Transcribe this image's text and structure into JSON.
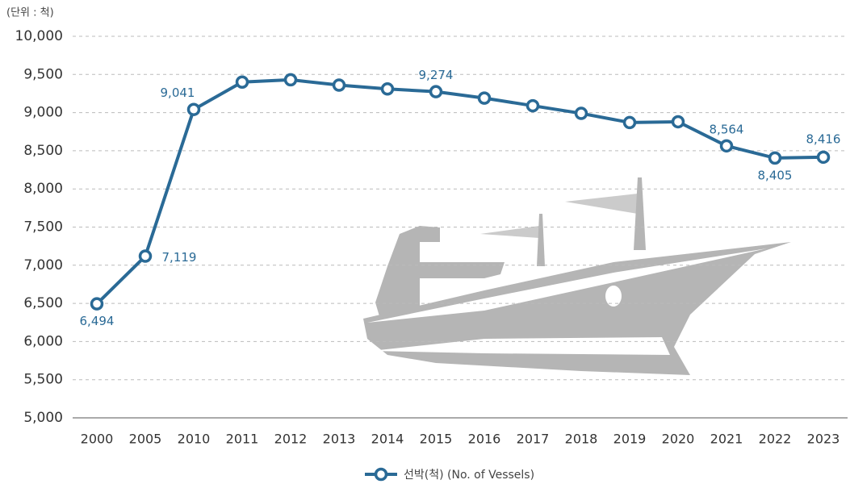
{
  "chart_data": {
    "type": "line",
    "unit_note": "(단위 : 척)",
    "categories": [
      "2000",
      "2005",
      "2010",
      "2011",
      "2012",
      "2013",
      "2014",
      "2015",
      "2016",
      "2017",
      "2018",
      "2019",
      "2020",
      "2021",
      "2022",
      "2023"
    ],
    "series": [
      {
        "name": "선박(척) (No. of Vessels)",
        "color": "#2a6a96",
        "values": [
          6494,
          7119,
          9041,
          9400,
          9430,
          9360,
          9310,
          9274,
          9190,
          9090,
          8990,
          8870,
          8880,
          8564,
          8405,
          8416
        ],
        "value_labels": [
          "6,494",
          "7,119",
          "9,041",
          null,
          null,
          null,
          null,
          "9,274",
          null,
          null,
          null,
          null,
          null,
          "8,564",
          "8,405",
          "8,416"
        ]
      }
    ],
    "ylim": [
      5000,
      10000
    ],
    "yticks": [
      {
        "value": 5000,
        "label": "5,000"
      },
      {
        "value": 5500,
        "label": "5,500"
      },
      {
        "value": 6000,
        "label": "6,000"
      },
      {
        "value": 6500,
        "label": "6,500"
      },
      {
        "value": 7000,
        "label": "7,000"
      },
      {
        "value": 7500,
        "label": "7,500"
      },
      {
        "value": 8000,
        "label": "8,000"
      },
      {
        "value": 8500,
        "label": "8,500"
      },
      {
        "value": 9000,
        "label": "9,000"
      },
      {
        "value": 9500,
        "label": "9,500"
      },
      {
        "value": 10000,
        "label": "10,000"
      }
    ],
    "grid": true
  }
}
